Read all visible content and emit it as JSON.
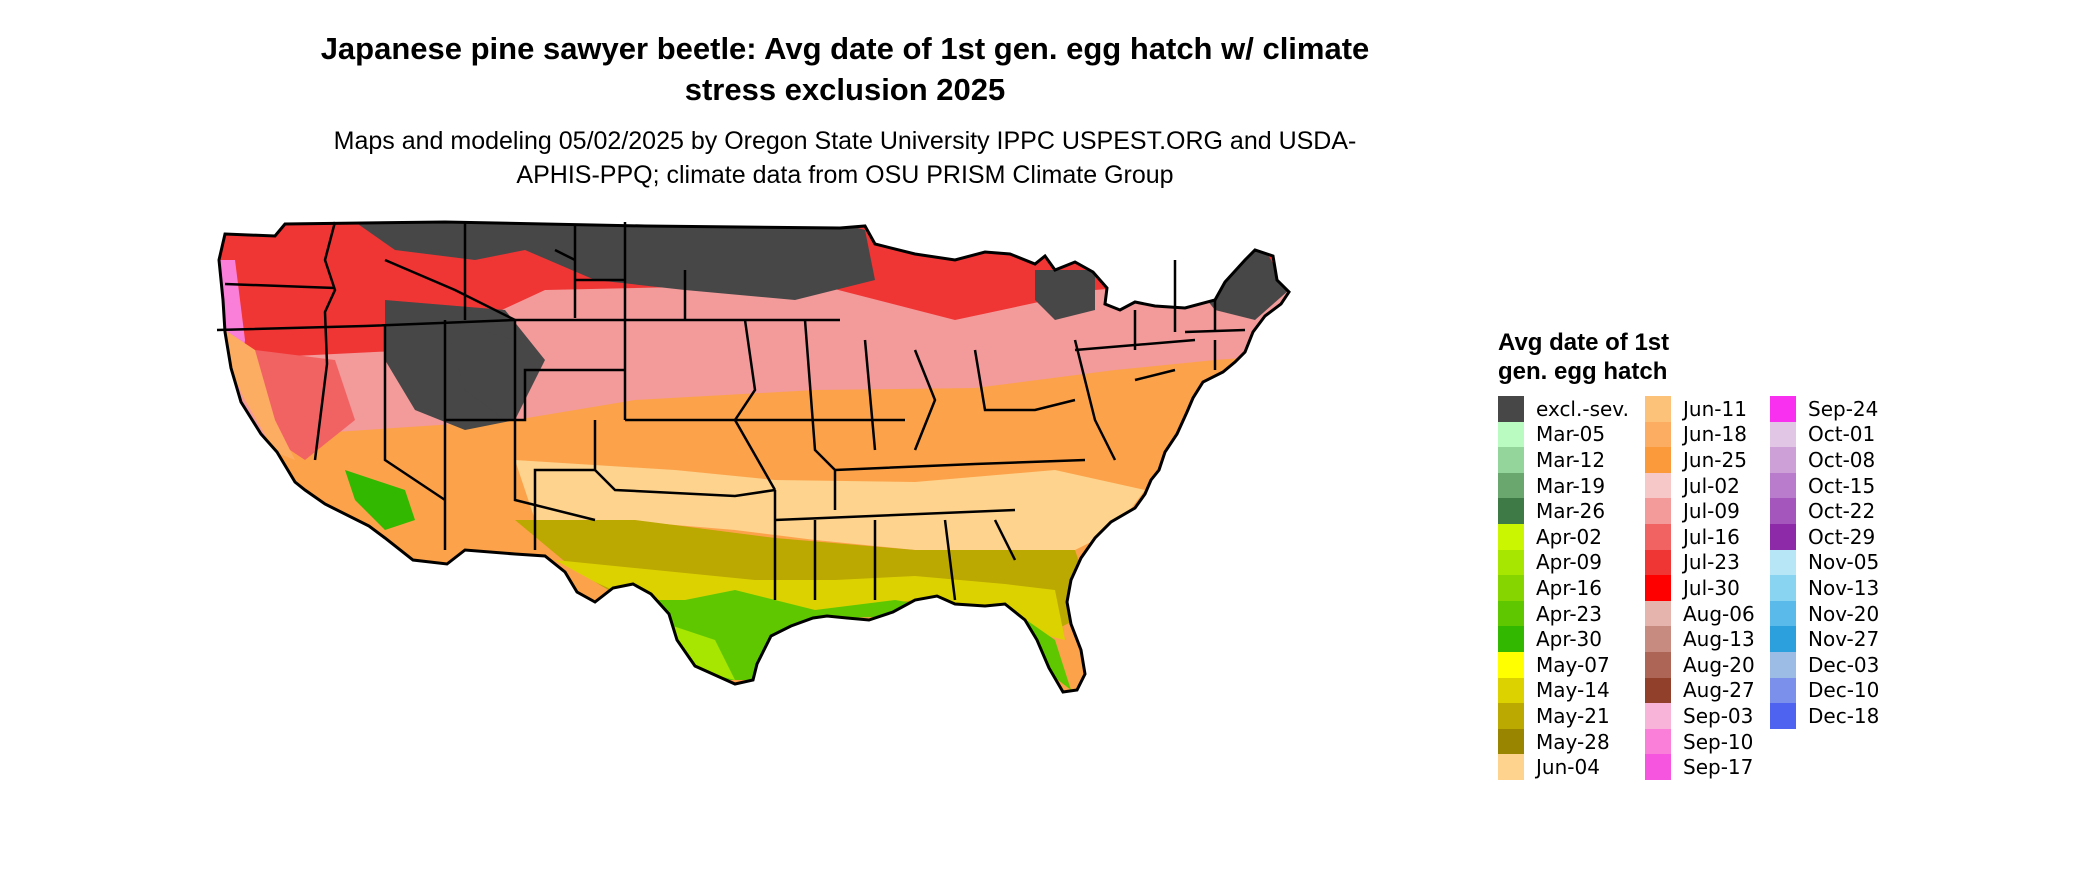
{
  "title": "Japanese pine sawyer beetle: Avg date of 1st gen. egg hatch w/ climate stress exclusion 2025",
  "subtitle": "Maps and modeling 05/02/2025 by Oregon State University IPPC USPEST.ORG and USDA-APHIS-PPQ; climate data from OSU PRISM Climate Group",
  "legend": {
    "title": "Avg date of 1st gen. egg hatch",
    "items": [
      {
        "label": "excl.-sev.",
        "color": "#474747"
      },
      {
        "label": "Mar-05",
        "color": "#b9fbc0"
      },
      {
        "label": "Mar-12",
        "color": "#94d59c"
      },
      {
        "label": "Mar-19",
        "color": "#6aa76e"
      },
      {
        "label": "Mar-26",
        "color": "#3d7a45"
      },
      {
        "label": "Apr-02",
        "color": "#c9f600"
      },
      {
        "label": "Apr-09",
        "color": "#a6e600"
      },
      {
        "label": "Apr-16",
        "color": "#86d400"
      },
      {
        "label": "Apr-23",
        "color": "#5fc700"
      },
      {
        "label": "Apr-30",
        "color": "#33b800"
      },
      {
        "label": "May-07",
        "color": "#ffff00"
      },
      {
        "label": "May-14",
        "color": "#dcd200"
      },
      {
        "label": "May-21",
        "color": "#bba800"
      },
      {
        "label": "May-28",
        "color": "#9a8500"
      },
      {
        "label": "Jun-04",
        "color": "#fdd38d"
      },
      {
        "label": "Jun-11",
        "color": "#fdc27a"
      },
      {
        "label": "Jun-18",
        "color": "#fcad62"
      },
      {
        "label": "Jun-25",
        "color": "#fb9a3a"
      },
      {
        "label": "Jul-02",
        "color": "#f6c8c8"
      },
      {
        "label": "Jul-09",
        "color": "#f39a9a"
      },
      {
        "label": "Jul-16",
        "color": "#f16363"
      },
      {
        "label": "Jul-23",
        "color": "#f03535"
      },
      {
        "label": "Jul-30",
        "color": "#ff0000"
      },
      {
        "label": "Aug-06",
        "color": "#e4b4ad"
      },
      {
        "label": "Aug-13",
        "color": "#c88b80"
      },
      {
        "label": "Aug-20",
        "color": "#ad6656"
      },
      {
        "label": "Aug-27",
        "color": "#90402b"
      },
      {
        "label": "Sep-03",
        "color": "#f9b4da"
      },
      {
        "label": "Sep-10",
        "color": "#f97fd9"
      },
      {
        "label": "Sep-17",
        "color": "#f655e0"
      },
      {
        "label": "Sep-24",
        "color": "#fa30f0"
      },
      {
        "label": "Oct-01",
        "color": "#e1c6e5"
      },
      {
        "label": "Oct-08",
        "color": "#cea0d8"
      },
      {
        "label": "Oct-15",
        "color": "#b97bcb"
      },
      {
        "label": "Oct-22",
        "color": "#a456bc"
      },
      {
        "label": "Oct-29",
        "color": "#8c2aa8"
      },
      {
        "label": "Nov-05",
        "color": "#b7e6f7"
      },
      {
        "label": "Nov-13",
        "color": "#88d4f1"
      },
      {
        "label": "Nov-20",
        "color": "#5abaea"
      },
      {
        "label": "Nov-27",
        "color": "#2ba0dc"
      },
      {
        "label": "Dec-03",
        "color": "#9cbce6"
      },
      {
        "label": "Dec-10",
        "color": "#7a90ea"
      },
      {
        "label": "Dec-18",
        "color": "#4e63f0"
      }
    ]
  }
}
